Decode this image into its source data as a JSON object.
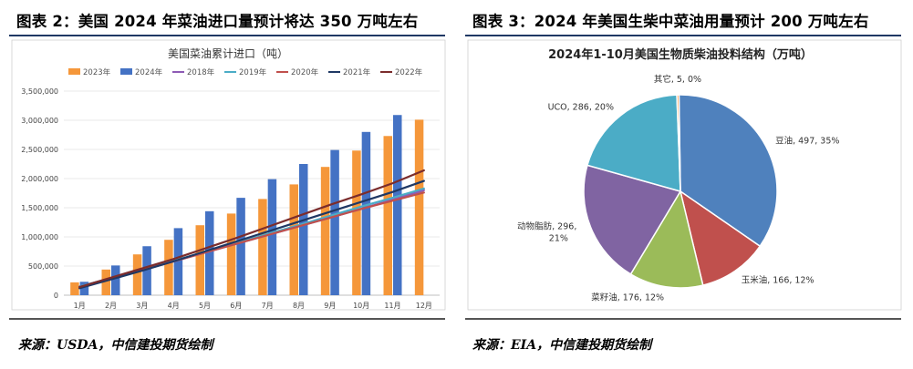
{
  "left": {
    "figure_title": "图表 2：美国 2024 年菜油进口量预计将达 350 万吨左右",
    "source": "来源：USDA，中信建投期货绘制"
  },
  "right": {
    "figure_title": "图表 3：2024 年美国生柴中菜油用量预计 200 万吨左右",
    "source": "来源：EIA，中信建投期货绘制"
  },
  "chart_data": [
    {
      "type": "bar",
      "title": "美国菜油累计进口（吨）",
      "categories": [
        "1月",
        "2月",
        "3月",
        "4月",
        "5月",
        "6月",
        "7月",
        "8月",
        "9月",
        "10月",
        "11月",
        "12月"
      ],
      "ylim": [
        0,
        3500000
      ],
      "yticks": [
        0,
        500000,
        1000000,
        1500000,
        2000000,
        2500000,
        3000000,
        3500000
      ],
      "ytick_labels": [
        "0",
        "500,000",
        "1,000,000",
        "1,500,000",
        "2,000,000",
        "2,500,000",
        "3,000,000",
        "3,500,000"
      ],
      "grid": true,
      "legend_position": "top",
      "series": [
        {
          "name": "2023年",
          "kind": "bar",
          "color": "#f5973a",
          "values": [
            220000,
            440000,
            700000,
            950000,
            1200000,
            1400000,
            1650000,
            1900000,
            2200000,
            2480000,
            2730000,
            3010000
          ]
        },
        {
          "name": "2024年",
          "kind": "bar",
          "color": "#4472c4",
          "values": [
            230000,
            510000,
            840000,
            1150000,
            1440000,
            1670000,
            1990000,
            2250000,
            2490000,
            2800000,
            3090000,
            null
          ]
        },
        {
          "name": "2018年",
          "kind": "line",
          "color": "#8e5bb5",
          "values": [
            150000,
            290000,
            430000,
            580000,
            730000,
            880000,
            1030000,
            1180000,
            1330000,
            1480000,
            1640000,
            1800000
          ]
        },
        {
          "name": "2019年",
          "kind": "line",
          "color": "#4bacc6",
          "values": [
            150000,
            290000,
            440000,
            590000,
            740000,
            890000,
            1050000,
            1200000,
            1360000,
            1520000,
            1670000,
            1830000
          ]
        },
        {
          "name": "2020年",
          "kind": "line",
          "color": "#c0504d",
          "values": [
            140000,
            280000,
            430000,
            580000,
            730000,
            880000,
            1030000,
            1180000,
            1330000,
            1480000,
            1620000,
            1760000
          ]
        },
        {
          "name": "2021年",
          "kind": "line",
          "color": "#1f3864",
          "values": [
            120000,
            270000,
            420000,
            580000,
            750000,
            920000,
            1090000,
            1260000,
            1430000,
            1600000,
            1770000,
            1960000
          ]
        },
        {
          "name": "2022年",
          "kind": "line",
          "color": "#7b2c2c",
          "values": [
            140000,
            300000,
            460000,
            620000,
            800000,
            980000,
            1170000,
            1360000,
            1550000,
            1730000,
            1920000,
            2140000
          ]
        }
      ]
    },
    {
      "type": "pie",
      "title": "2024年1-10月美国生物质柴油投料结构（万吨）",
      "slices": [
        {
          "name": "豆油",
          "value": 497,
          "pct": "35%",
          "color": "#4f81bd",
          "label": "豆油, 497, 35%"
        },
        {
          "name": "玉米油",
          "value": 166,
          "pct": "12%",
          "color": "#c0504d",
          "label": "玉米油, 166, 12%"
        },
        {
          "name": "菜籽油",
          "value": 176,
          "pct": "12%",
          "color": "#9bbb59",
          "label": "菜籽油, 176, 12%"
        },
        {
          "name": "动物脂肪",
          "value": 296,
          "pct": "21%",
          "color": "#8064a2",
          "label_line1": "动物脂肪, 296,",
          "label_line2": "21%"
        },
        {
          "name": "UCO",
          "value": 286,
          "pct": "20%",
          "color": "#4bacc6",
          "label": "UCO, 286, 20%"
        },
        {
          "name": "其它",
          "value": 5,
          "pct": "0%",
          "color": "#f79646",
          "label": "其它, 5, 0%"
        }
      ]
    }
  ]
}
